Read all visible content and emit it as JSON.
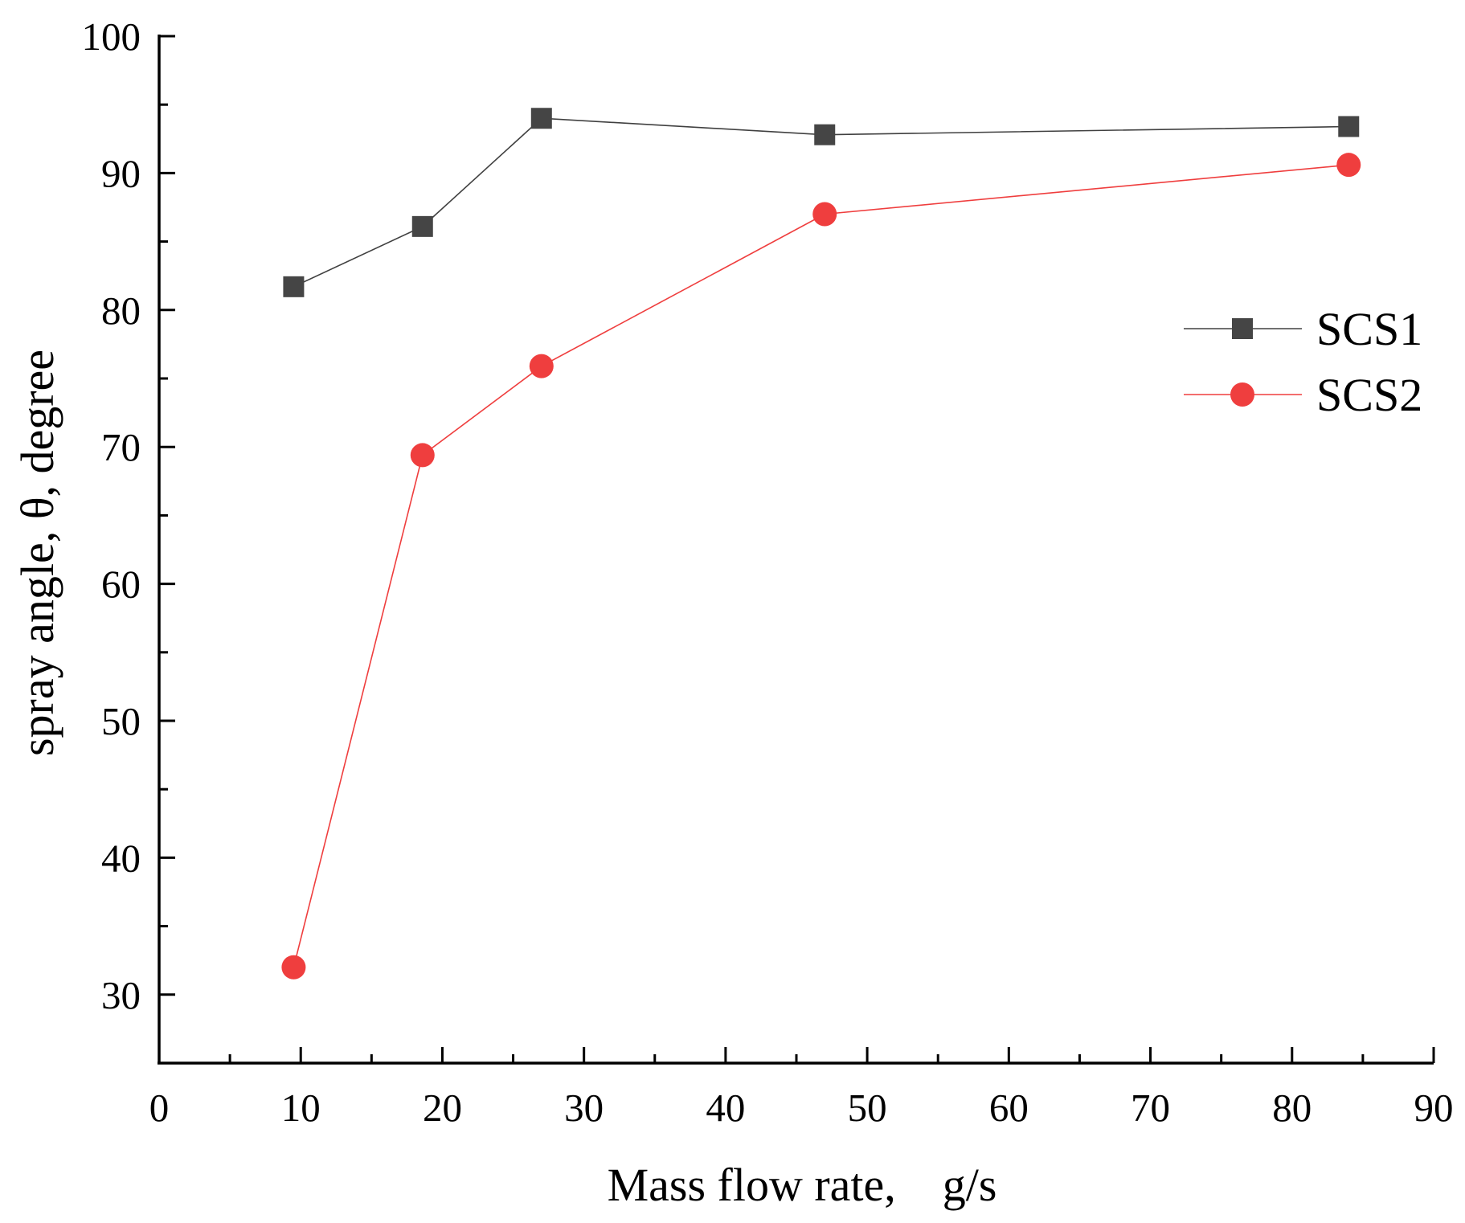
{
  "chart_data": {
    "type": "line",
    "title": "",
    "xlabel": "Mass flow rate,　g/s",
    "ylabel": "spray angle, θ, degree",
    "xlim": [
      0,
      90
    ],
    "ylim": [
      25,
      100
    ],
    "x_ticks": [
      0,
      10,
      20,
      30,
      40,
      50,
      60,
      70,
      80,
      90
    ],
    "y_ticks": [
      30,
      40,
      50,
      60,
      70,
      80,
      90,
      100
    ],
    "grid": false,
    "legend_position": "right",
    "series": [
      {
        "name": "SCS1",
        "marker": "square",
        "color": "#454545",
        "line_color": "#404040",
        "x": [
          9.5,
          18.6,
          27.0,
          47.0,
          84.0
        ],
        "y": [
          81.7,
          86.1,
          94.0,
          92.8,
          93.4
        ]
      },
      {
        "name": "SCS2",
        "marker": "circle",
        "color": "#ef3e3e",
        "line_color": "#ef3e3e",
        "x": [
          9.5,
          18.6,
          27.0,
          47.0,
          84.0
        ],
        "y": [
          32.0,
          69.4,
          75.9,
          87.0,
          90.6
        ]
      }
    ]
  }
}
